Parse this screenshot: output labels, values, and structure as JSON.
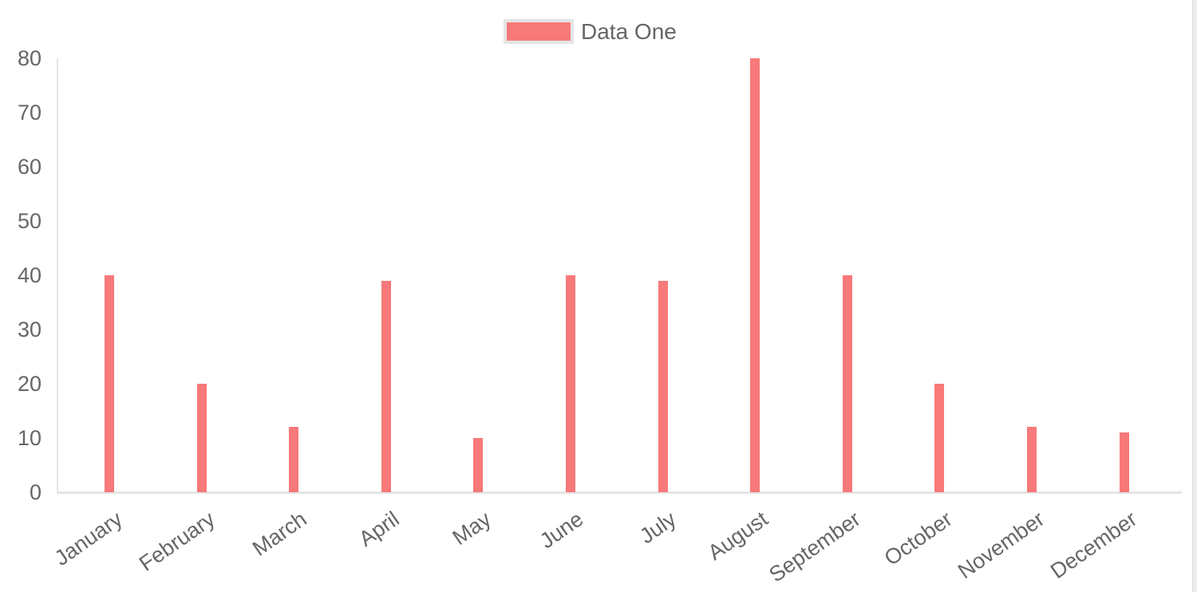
{
  "chart_data": {
    "type": "bar",
    "title": "",
    "categories": [
      "January",
      "February",
      "March",
      "April",
      "May",
      "June",
      "July",
      "August",
      "September",
      "October",
      "November",
      "December"
    ],
    "series": [
      {
        "name": "Data One",
        "color": "#f87979",
        "values": [
          40,
          20,
          12,
          39,
          10,
          40,
          39,
          80,
          40,
          20,
          12,
          11
        ]
      }
    ],
    "legend": {
      "position": "top",
      "entries": [
        {
          "label": "Data One",
          "color": "#f87979"
        }
      ]
    },
    "xlabel": "",
    "ylabel": "",
    "ylim": [
      0,
      80
    ],
    "y_ticks": [
      0,
      10,
      20,
      30,
      40,
      50,
      60,
      70,
      80
    ],
    "x_tick_rotation_deg": -35,
    "grid": false,
    "colors": {
      "bar": "#f87979",
      "axis_line": "#e5e5e5",
      "tick_text": "#666666",
      "legend_text": "#666666",
      "legend_border": "#e5e5e5",
      "background": "#ffffff",
      "scrollbar_track": "#ededed"
    }
  }
}
